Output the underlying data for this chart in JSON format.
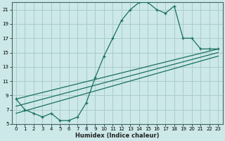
{
  "xlabel": "Humidex (Indice chaleur)",
  "background_color": "#cce8e8",
  "grid_color": "#aacccc",
  "line_color": "#1a7060",
  "xlim": [
    -0.5,
    23.5
  ],
  "ylim": [
    5,
    22
  ],
  "xticks": [
    0,
    1,
    2,
    3,
    4,
    5,
    6,
    7,
    8,
    9,
    10,
    11,
    12,
    13,
    14,
    15,
    16,
    17,
    18,
    19,
    20,
    21,
    22,
    23
  ],
  "yticks": [
    5,
    7,
    9,
    11,
    13,
    15,
    17,
    19,
    21
  ],
  "series1_x": [
    0,
    1,
    2,
    3,
    4,
    5,
    6,
    7,
    8,
    9,
    10,
    11,
    12,
    13,
    14,
    15,
    16,
    17,
    18,
    19,
    20,
    21,
    22,
    23
  ],
  "series1_y": [
    8.5,
    7.0,
    6.5,
    6.0,
    6.5,
    5.5,
    5.5,
    6.0,
    8.0,
    11.5,
    14.5,
    17.0,
    19.5,
    21.0,
    22.0,
    22.0,
    21.0,
    20.5,
    21.5,
    17.0,
    17.0,
    15.5,
    15.5,
    15.5
  ],
  "series2_x": [
    0,
    23
  ],
  "series2_y": [
    8.5,
    15.5
  ],
  "series3_x": [
    0,
    23
  ],
  "series3_y": [
    7.5,
    15.0
  ],
  "series4_x": [
    0,
    23
  ],
  "series4_y": [
    6.5,
    14.5
  ]
}
